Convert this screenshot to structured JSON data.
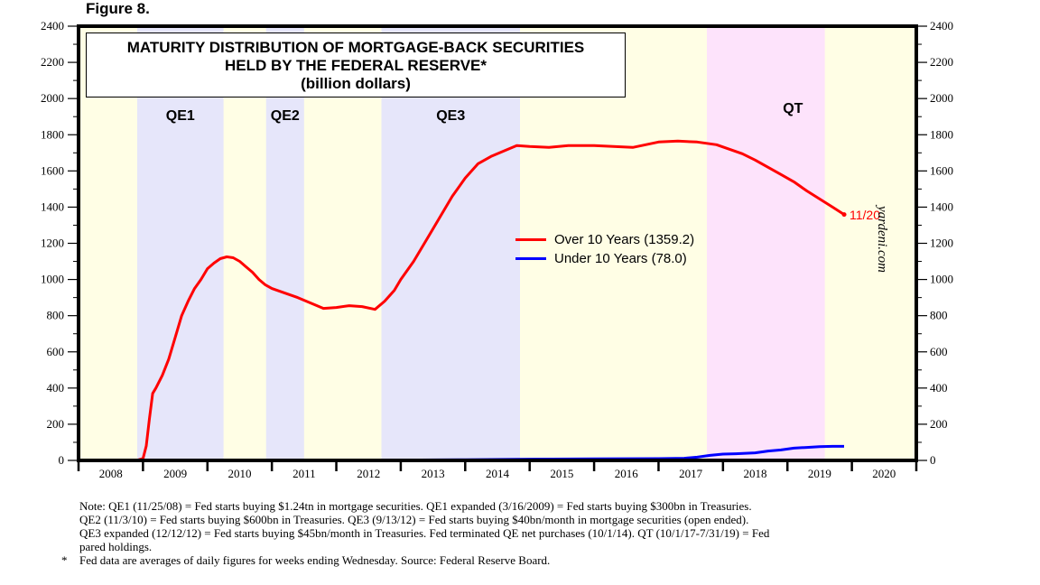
{
  "figure_label": "Figure 8.",
  "title": {
    "line1": "MATURITY DISTRIBUTION OF MORTGAGE-BACK SECURITIES",
    "line2": "HELD BY THE FEDERAL RESERVE*",
    "line3": "(billion dollars)"
  },
  "watermark": "yardeni.com",
  "end_label": "11/20",
  "notes": {
    "line1": "Note: QE1 (11/25/08) = Fed starts buying $1.24tn in mortgage securities. QE1 expanded (3/16/2009) = Fed starts buying $300bn in Treasuries.",
    "line2": "QE2 (11/3/10) = Fed starts buying $600bn in Treasuries. QE3 (9/13/12) = Fed starts buying $40bn/month in mortgage securities (open ended).",
    "line3": "QE3 expanded (12/12/12) = Fed starts buying $45bn/month in Treasuries. Fed terminated QE net purchases (10/1/14). QT (10/1/17-7/31/19) = Fed",
    "line4": "pared holdings.",
    "footnote_marker": "*",
    "footnote": "Fed data are averages of daily figures for weeks ending Wednesday. Source: Federal Reserve Board."
  },
  "colors": {
    "background_default": "#fffee5",
    "qe_band": "#e6e6fa",
    "qt_band": "#fde3fb",
    "over_10": "#ff0000",
    "under_10": "#0000ff"
  },
  "chart_data": {
    "type": "line",
    "title": "MATURITY DISTRIBUTION OF MORTGAGE-BACK SECURITIES HELD BY THE FEDERAL RESERVE* (billion dollars)",
    "xlabel": "",
    "ylabel": "billion dollars",
    "xlim": [
      2008,
      2021
    ],
    "ylim": [
      0,
      2400
    ],
    "yticks": [
      0,
      200,
      400,
      600,
      800,
      1000,
      1200,
      1400,
      1600,
      1800,
      2000,
      2200,
      2400
    ],
    "xtick_labels": [
      "2008",
      "2009",
      "2010",
      "2011",
      "2012",
      "2013",
      "2014",
      "2015",
      "2016",
      "2017",
      "2018",
      "2019",
      "2020"
    ],
    "grid": false,
    "legend_position": "center-right",
    "bands": [
      {
        "label": "QE1",
        "start": 2008.91,
        "end": 2010.25,
        "type": "qe"
      },
      {
        "label": "QE2",
        "start": 2010.91,
        "end": 2011.5,
        "type": "qe"
      },
      {
        "label": "QE3",
        "start": 2012.7,
        "end": 2014.85,
        "type": "qe"
      },
      {
        "label": "QT",
        "start": 2017.75,
        "end": 2019.58,
        "type": "qt"
      }
    ],
    "series": [
      {
        "name": "Over 10 Years (1359.2)",
        "color": "#ff0000",
        "x": [
          2008.0,
          2008.9,
          2009.0,
          2009.05,
          2009.1,
          2009.15,
          2009.2,
          2009.3,
          2009.4,
          2009.5,
          2009.6,
          2009.7,
          2009.8,
          2009.9,
          2010.0,
          2010.1,
          2010.2,
          2010.3,
          2010.4,
          2010.5,
          2010.6,
          2010.7,
          2010.8,
          2010.9,
          2011.0,
          2011.2,
          2011.4,
          2011.6,
          2011.8,
          2012.0,
          2012.2,
          2012.4,
          2012.6,
          2012.75,
          2012.9,
          2013.0,
          2013.2,
          2013.4,
          2013.6,
          2013.8,
          2014.0,
          2014.2,
          2014.4,
          2014.6,
          2014.8,
          2015.0,
          2015.3,
          2015.6,
          2016.0,
          2016.3,
          2016.6,
          2017.0,
          2017.3,
          2017.6,
          2017.9,
          2018.1,
          2018.3,
          2018.5,
          2018.7,
          2018.9,
          2019.1,
          2019.3,
          2019.5,
          2019.7,
          2019.88
        ],
        "values": [
          0,
          0,
          10,
          80,
          230,
          370,
          400,
          470,
          560,
          680,
          800,
          880,
          950,
          1000,
          1060,
          1090,
          1115,
          1125,
          1120,
          1100,
          1070,
          1040,
          1000,
          970,
          950,
          925,
          900,
          870,
          840,
          845,
          855,
          850,
          835,
          880,
          940,
          1000,
          1100,
          1220,
          1340,
          1460,
          1560,
          1640,
          1680,
          1710,
          1740,
          1735,
          1730,
          1740,
          1740,
          1735,
          1730,
          1760,
          1765,
          1760,
          1745,
          1720,
          1695,
          1660,
          1620,
          1580,
          1540,
          1490,
          1445,
          1400,
          1359
        ]
      },
      {
        "name": "Under 10 Years (78.0)",
        "color": "#0000ff",
        "x": [
          2009.0,
          2010.0,
          2011.0,
          2012.0,
          2013.0,
          2014.0,
          2015.0,
          2016.0,
          2017.0,
          2017.4,
          2017.6,
          2017.8,
          2018.0,
          2018.2,
          2018.5,
          2018.7,
          2018.9,
          2019.1,
          2019.3,
          2019.5,
          2019.7,
          2019.88
        ],
        "values": [
          0,
          0,
          0,
          1,
          2,
          4,
          7,
          9,
          10,
          12,
          18,
          28,
          35,
          37,
          42,
          52,
          58,
          68,
          72,
          76,
          78,
          78
        ]
      }
    ]
  }
}
